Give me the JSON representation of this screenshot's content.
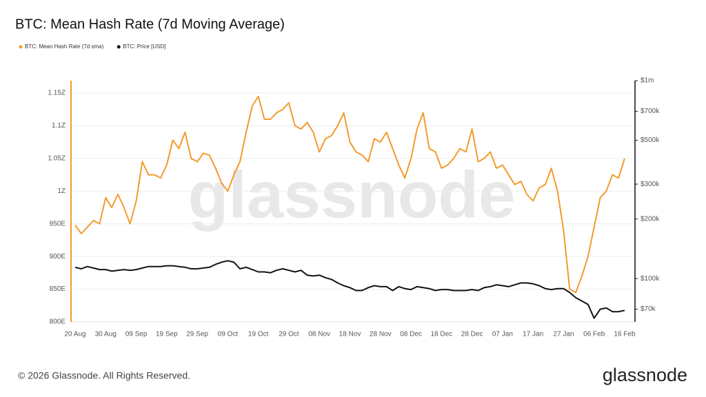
{
  "chart_data": {
    "type": "line",
    "title": "BTC: Mean Hash Rate (7d Moving Average)",
    "watermark": "glassnode",
    "footer": "© 2026 Glassnode. All Rights Reserved.",
    "logo": "glassnode",
    "categories": [
      "20 Aug",
      null,
      null,
      null,
      null,
      "30 Aug",
      null,
      null,
      null,
      null,
      "09 Sep",
      null,
      null,
      null,
      null,
      "19 Sep",
      null,
      null,
      null,
      null,
      "29 Sep",
      null,
      null,
      null,
      null,
      "09 Oct",
      null,
      null,
      null,
      null,
      "19 Oct",
      null,
      null,
      null,
      null,
      "29 Oct",
      null,
      null,
      null,
      null,
      "08 Nov",
      null,
      null,
      null,
      null,
      "18 Nov",
      null,
      null,
      null,
      null,
      "28 Nov",
      null,
      null,
      null,
      null,
      "08 Dec",
      null,
      null,
      null,
      null,
      "18 Dec",
      null,
      null,
      null,
      null,
      "28 Dec",
      null,
      null,
      null,
      null,
      "07 Jan",
      null,
      null,
      null,
      null,
      "17 Jan",
      null,
      null,
      null,
      null,
      "27 Jan",
      null,
      null,
      null,
      null,
      "06 Feb",
      null,
      null,
      null,
      null,
      "16 Feb"
    ],
    "series": [
      {
        "name": "BTC: Mean Hash Rate (7d sma)",
        "color": "#f39a2b",
        "axis": "y",
        "values": [
          948,
          935,
          945,
          955,
          950,
          990,
          975,
          995,
          975,
          950,
          985,
          1045,
          1025,
          1025,
          1020,
          1040,
          1078,
          1065,
          1090,
          1050,
          1045,
          1058,
          1055,
          1035,
          1012,
          1000,
          1025,
          1045,
          1090,
          1130,
          1145,
          1110,
          1110,
          1120,
          1125,
          1135,
          1100,
          1095,
          1105,
          1090,
          1060,
          1080,
          1085,
          1100,
          1120,
          1075,
          1060,
          1055,
          1045,
          1080,
          1075,
          1090,
          1065,
          1040,
          1020,
          1050,
          1095,
          1120,
          1065,
          1060,
          1035,
          1040,
          1050,
          1065,
          1060,
          1095,
          1045,
          1050,
          1060,
          1035,
          1040,
          1025,
          1010,
          1015,
          995,
          985,
          1005,
          1010,
          1035,
          1000,
          940,
          850,
          845,
          870,
          900,
          945,
          990,
          1000,
          1025,
          1020,
          1050
        ]
      },
      {
        "name": "BTC: Price [USD]",
        "color": "#111111",
        "axis": "y2",
        "values": [
          114000,
          112000,
          115000,
          113000,
          111000,
          111000,
          109000,
          110000,
          111000,
          110000,
          111000,
          113000,
          115000,
          115000,
          115000,
          116000,
          116000,
          115000,
          114000,
          112000,
          112000,
          113000,
          114000,
          118000,
          121000,
          123000,
          121000,
          112000,
          114000,
          111000,
          108000,
          108000,
          107000,
          110000,
          112000,
          110000,
          108000,
          110000,
          104000,
          103000,
          104000,
          101000,
          99000,
          95000,
          92000,
          90000,
          87000,
          87000,
          90000,
          92000,
          91000,
          91000,
          87000,
          91000,
          89000,
          88000,
          91000,
          90000,
          89000,
          87000,
          88000,
          88000,
          87000,
          87000,
          87000,
          88000,
          87000,
          90000,
          91000,
          93000,
          92000,
          91000,
          93000,
          95000,
          95000,
          94000,
          92000,
          89000,
          88000,
          89000,
          89000,
          85000,
          80000,
          77000,
          74000,
          63000,
          70000,
          71000,
          68000,
          68000,
          69000
        ]
      }
    ],
    "ylim": [
      800,
      1169
    ],
    "yticks": [
      {
        "value": 800,
        "label": "800E"
      },
      {
        "value": 850,
        "label": "850E"
      },
      {
        "value": 900,
        "label": "900E"
      },
      {
        "value": 950,
        "label": "950E"
      },
      {
        "value": 1000,
        "label": "1Z"
      },
      {
        "value": 1050,
        "label": "1.05Z"
      },
      {
        "value": 1100,
        "label": "1.1Z"
      },
      {
        "value": 1150,
        "label": "1.15Z"
      }
    ],
    "y2lim": [
      60400,
      1000000
    ],
    "y2_scale": "log",
    "y2ticks": [
      {
        "value": 70000,
        "label": "$70k"
      },
      {
        "value": 100000,
        "label": "$100k"
      },
      {
        "value": 200000,
        "label": "$200k"
      },
      {
        "value": 300000,
        "label": "$300k"
      },
      {
        "value": 500000,
        "label": "$500k"
      },
      {
        "value": 700000,
        "label": "$700k"
      },
      {
        "value": 1000000,
        "label": "$1m"
      }
    ],
    "grid": true,
    "legend": "top-left"
  }
}
